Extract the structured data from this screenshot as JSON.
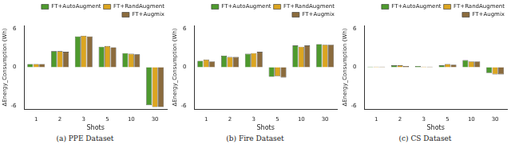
{
  "chart_data": [
    {
      "type": "bar",
      "title": "(a) PPE Dataset",
      "categories": [
        "1",
        "2",
        "3",
        "5",
        "10",
        "30"
      ],
      "x_label": "Shots",
      "y_label": "ΔEnergy_Consumption (Wh)",
      "ylim": [
        -6.5,
        6.5
      ],
      "yticks": [
        -6,
        0,
        6
      ],
      "grid": false,
      "legend": "top-right",
      "series": [
        {
          "name": "FT+AutoAugment",
          "color": "#4e9a2e",
          "values": [
            0.5,
            2.5,
            4.8,
            3.2,
            2.2,
            -5.9
          ]
        },
        {
          "name": "FT+RandAugment",
          "color": "#dba521",
          "values": [
            0.5,
            2.5,
            4.9,
            3.3,
            2.1,
            -6.2
          ]
        },
        {
          "name": "FT+Augmix",
          "color": "#8b6b3d",
          "values": [
            0.5,
            2.4,
            4.8,
            3.1,
            2.0,
            -6.2
          ]
        }
      ]
    },
    {
      "type": "bar",
      "title": "(b) Fire Dataset",
      "categories": [
        "1",
        "2",
        "3",
        "5",
        "10",
        "30"
      ],
      "x_label": "Shots",
      "y_label": "ΔEnergy_Consumption (Wh)",
      "ylim": [
        -6.5,
        6.5
      ],
      "yticks": [
        -6,
        0,
        6
      ],
      "grid": false,
      "legend": "top-right",
      "series": [
        {
          "name": "FT+AutoAugment",
          "color": "#4e9a2e",
          "values": [
            1.0,
            1.8,
            2.1,
            -1.5,
            3.4,
            3.6
          ]
        },
        {
          "name": "FT+RandAugment",
          "color": "#dba521",
          "values": [
            1.2,
            1.6,
            2.2,
            -1.4,
            3.2,
            3.5
          ]
        },
        {
          "name": "FT+Augmix",
          "color": "#8b6b3d",
          "values": [
            0.9,
            1.6,
            2.4,
            -1.6,
            3.4,
            3.5
          ]
        }
      ]
    },
    {
      "type": "bar",
      "title": "(c) CS Dataset",
      "categories": [
        "1",
        "2",
        "3",
        "5",
        "10",
        "30"
      ],
      "x_label": "Shots",
      "y_label": "ΔEnergy_Consumption (Wh)",
      "ylim": [
        -6.5,
        6.5
      ],
      "yticks": [
        -6,
        0,
        6
      ],
      "grid": false,
      "legend": "top-right",
      "series": [
        {
          "name": "FT+AutoAugment",
          "color": "#4e9a2e",
          "values": [
            0.1,
            0.3,
            0.2,
            0.3,
            1.1,
            -0.9
          ]
        },
        {
          "name": "FT+RandAugment",
          "color": "#dba521",
          "values": [
            0.1,
            0.3,
            0.1,
            0.5,
            0.9,
            -1.1
          ]
        },
        {
          "name": "FT+Augmix",
          "color": "#8b6b3d",
          "values": [
            0.1,
            0.2,
            0.1,
            0.4,
            0.9,
            -1.1
          ]
        }
      ]
    }
  ]
}
